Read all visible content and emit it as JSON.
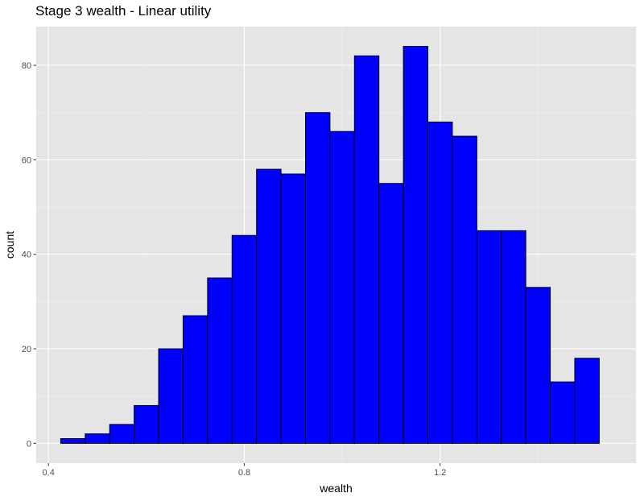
{
  "chart_data": {
    "type": "bar",
    "title": "Stage 3 wealth - Linear utility",
    "xlabel": "wealth",
    "ylabel": "count",
    "xlim": [
      0.375,
      1.6
    ],
    "ylim": [
      -4.2,
      88.2
    ],
    "x_ticks": [
      0.4,
      0.8,
      1.2
    ],
    "x_tick_labels": [
      "0.4",
      "0.8",
      "1.2"
    ],
    "x_minor_ticks": [
      0.6,
      1.0,
      1.4
    ],
    "y_ticks": [
      0,
      20,
      40,
      60,
      80
    ],
    "y_tick_labels": [
      "0",
      "20",
      "40",
      "60",
      "80"
    ],
    "bin_width": 0.05,
    "bins": [
      {
        "x_start": 0.425,
        "x_end": 0.475,
        "count": 1
      },
      {
        "x_start": 0.475,
        "x_end": 0.525,
        "count": 2
      },
      {
        "x_start": 0.525,
        "x_end": 0.575,
        "count": 4
      },
      {
        "x_start": 0.575,
        "x_end": 0.625,
        "count": 8
      },
      {
        "x_start": 0.625,
        "x_end": 0.675,
        "count": 20
      },
      {
        "x_start": 0.675,
        "x_end": 0.725,
        "count": 27
      },
      {
        "x_start": 0.725,
        "x_end": 0.775,
        "count": 35
      },
      {
        "x_start": 0.775,
        "x_end": 0.825,
        "count": 44
      },
      {
        "x_start": 0.825,
        "x_end": 0.875,
        "count": 58
      },
      {
        "x_start": 0.875,
        "x_end": 0.925,
        "count": 57
      },
      {
        "x_start": 0.925,
        "x_end": 0.975,
        "count": 70
      },
      {
        "x_start": 0.975,
        "x_end": 1.025,
        "count": 66
      },
      {
        "x_start": 1.025,
        "x_end": 1.075,
        "count": 82
      },
      {
        "x_start": 1.075,
        "x_end": 1.125,
        "count": 55
      },
      {
        "x_start": 1.125,
        "x_end": 1.175,
        "count": 84
      },
      {
        "x_start": 1.175,
        "x_end": 1.225,
        "count": 68
      },
      {
        "x_start": 1.225,
        "x_end": 1.275,
        "count": 65
      },
      {
        "x_start": 1.275,
        "x_end": 1.325,
        "count": 45
      },
      {
        "x_start": 1.325,
        "x_end": 1.375,
        "count": 45
      },
      {
        "x_start": 1.375,
        "x_end": 1.425,
        "count": 33
      },
      {
        "x_start": 1.425,
        "x_end": 1.475,
        "count": 13
      },
      {
        "x_start": 1.475,
        "x_end": 1.525,
        "count": 18
      }
    ],
    "grid": true,
    "colors": {
      "bar_fill": "#0000ff",
      "bar_stroke": "#000000",
      "panel_background": "#e5e5e5",
      "grid_major": "#ffffff",
      "grid_minor": "#f2f2f2",
      "tick_text": "#4d4d4d",
      "axis_tick": "#333333"
    }
  }
}
